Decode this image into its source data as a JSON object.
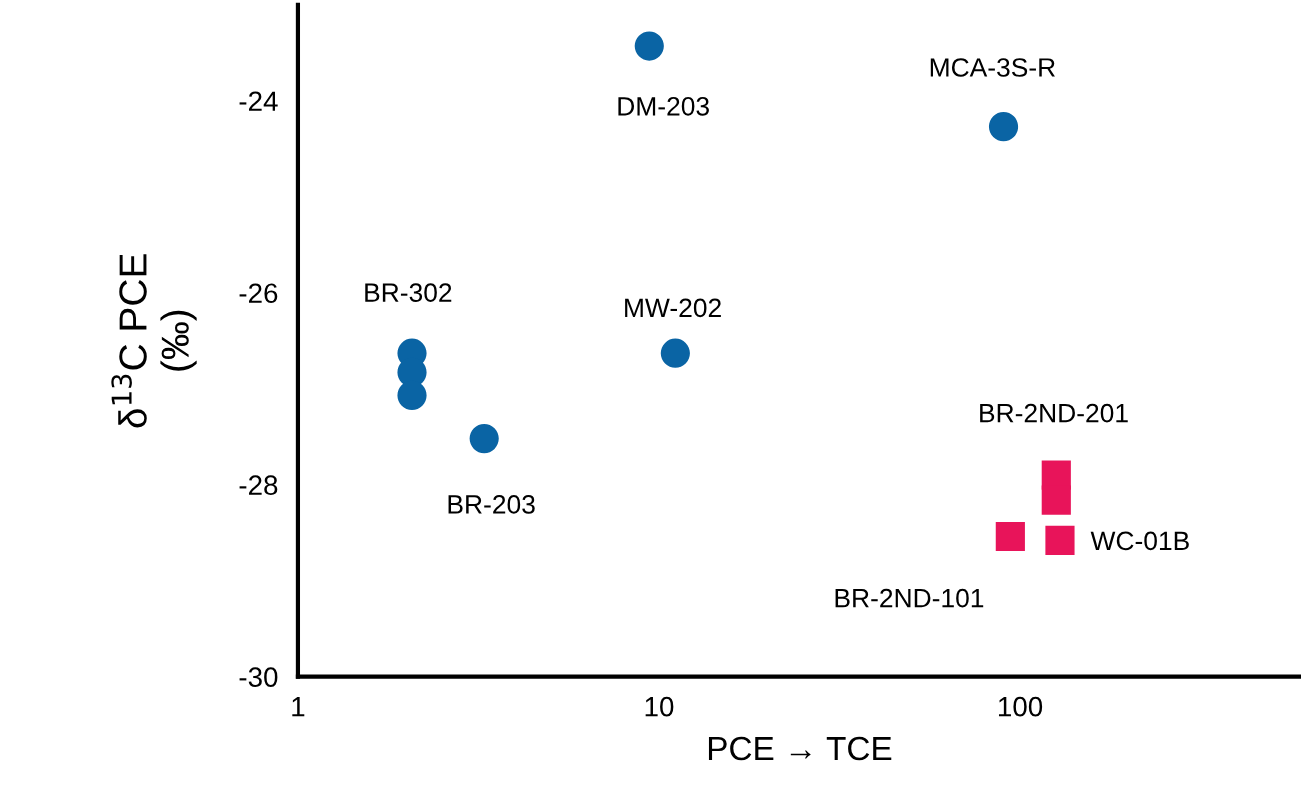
{
  "chart_data": {
    "type": "scatter",
    "xlabel": "PCE → TCE",
    "ylabel": "δ$^{13}$C PCE\n(‰)",
    "series": [
      {
        "color": "#0a64a4",
        "marker": "circle",
        "x": [
          9.4,
          90,
          2.07,
          2.07,
          2.07,
          3.28,
          11.1
        ],
        "values": [
          -23.43,
          -24.27,
          -26.63,
          -26.83,
          -27.07,
          -27.52,
          -26.63
        ]
      },
      {
        "color": "#e8145a",
        "marker": "square",
        "x": [
          126,
          126,
          94,
          129
        ],
        "values": [
          -27.9,
          -28.16,
          -28.54,
          -28.58
        ]
      }
    ],
    "annotations": [
      {
        "text": "DM-203",
        "x": 9.4,
        "y": -23.43
      },
      {
        "text": "MCA-3S-R",
        "x": 90,
        "y": -24.27
      },
      {
        "text": "BR-302",
        "x": 2.07,
        "y": -26.63
      },
      {
        "text": "MW-202",
        "x": 11.1,
        "y": -26.63
      },
      {
        "text": "BR-203",
        "x": 3.28,
        "y": -27.52
      },
      {
        "text": "BR-2ND-201",
        "x": 126,
        "y": -27.9
      },
      {
        "text": "WC-01B",
        "x": 129,
        "y": -28.58
      },
      {
        "text": "BR-2ND-101",
        "x": 94,
        "y": -28.54
      }
    ],
    "log": "x",
    "xlim": [
      1,
      600
    ],
    "xticks": [
      1,
      10,
      100
    ],
    "ylim": [
      -30,
      -23
    ],
    "yticks": [
      -30,
      -28,
      -26,
      -24
    ],
    "grid": false,
    "legend": false
  }
}
